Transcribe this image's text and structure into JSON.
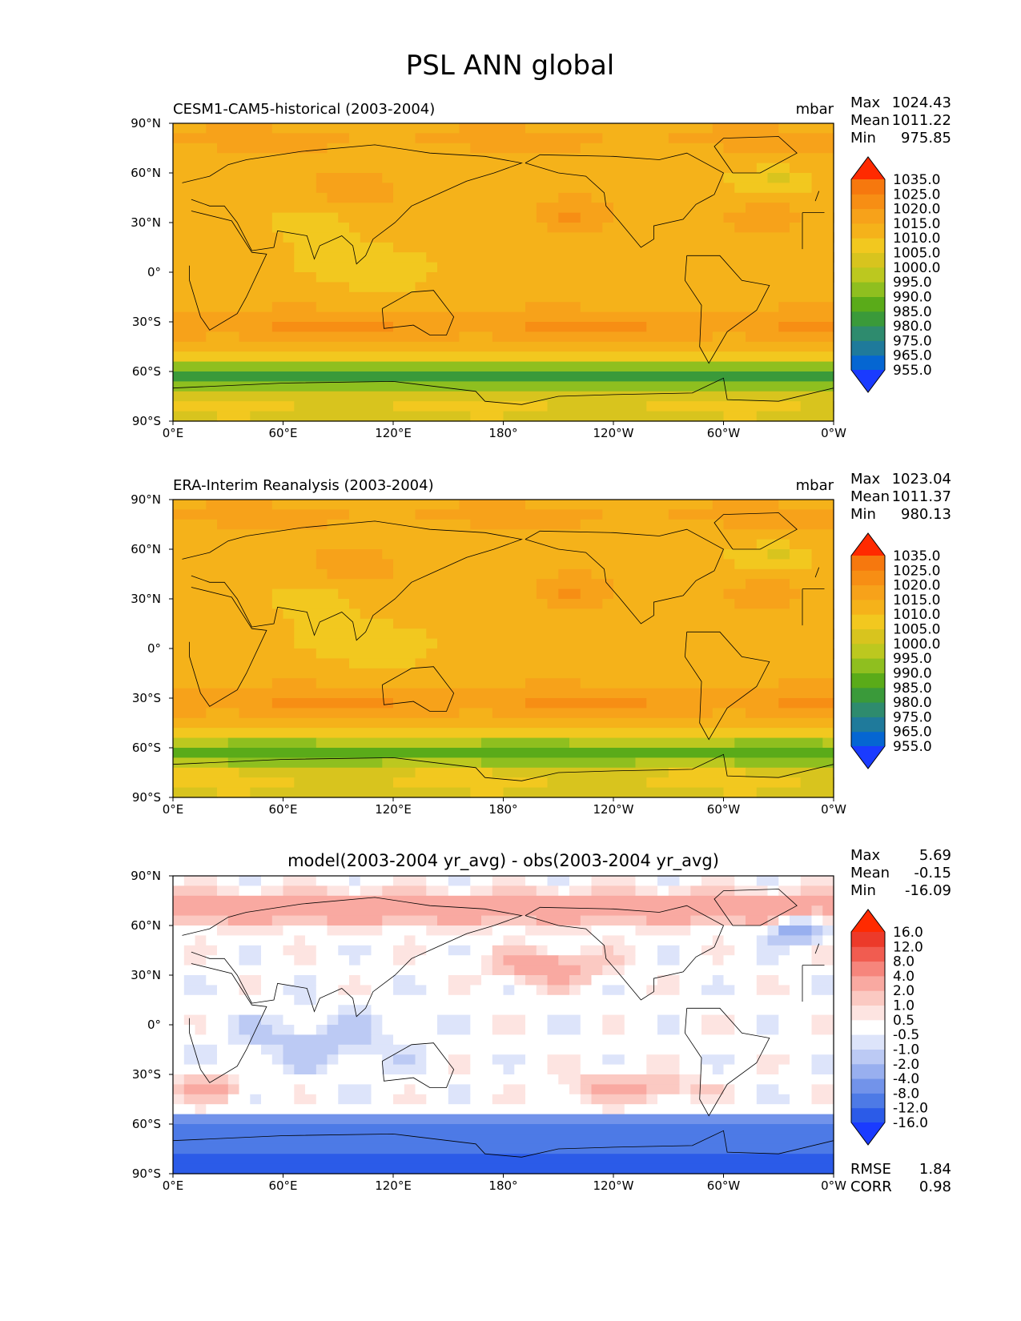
{
  "title": "PSL ANN global",
  "colors": {
    "abs": [
      "#1a3bff",
      "#0566d2",
      "#1f7a9b",
      "#2e8b6e",
      "#3a9a3a",
      "#5aab19",
      "#8fbf1f",
      "#bcc81f",
      "#d8c41e",
      "#f2c81f",
      "#f5b21a",
      "#f7a21a",
      "#f78e14",
      "#f6780e",
      "#f24d0a",
      "#ff2a00"
    ],
    "diff": [
      "#1a3bff",
      "#2b5be8",
      "#4d7ae6",
      "#7293ea",
      "#98afef",
      "#bccaf4",
      "#dde4fa",
      "#ffffff",
      "#fde4e1",
      "#fbc9c2",
      "#f9a9a1",
      "#f6857c",
      "#f15c50",
      "#ec3a2a",
      "#ff2a00"
    ],
    "coastline": "#000000"
  },
  "chart_data": [
    {
      "type": "heatmap",
      "panel": "test",
      "title_left": "CESM1-CAM5-historical (2003-2004)",
      "title_right": "mbar",
      "stats": [
        {
          "label": "Max",
          "value": "1024.43"
        },
        {
          "label": "Mean",
          "value": "1011.22"
        },
        {
          "label": "Min",
          "value": "975.85"
        }
      ],
      "colorbar_levels": [
        "955.0",
        "965.0",
        "975.0",
        "980.0",
        "985.0",
        "990.0",
        "995.0",
        "1000.0",
        "1005.0",
        "1010.0",
        "1015.0",
        "1020.0",
        "1025.0",
        "1035.0"
      ],
      "xticks": [
        "0°E",
        "60°E",
        "120°E",
        "180°",
        "120°W",
        "60°W",
        "0°W"
      ],
      "yticks": [
        "90°N",
        "60°N",
        "30°N",
        "0°",
        "30°S",
        "60°S",
        "90°S"
      ],
      "xlim": [
        0,
        360
      ],
      "ylim": [
        -90,
        90
      ]
    },
    {
      "type": "heatmap",
      "panel": "reference",
      "title_left": "ERA-Interim Reanalysis (2003-2004)",
      "title_right": "mbar",
      "stats": [
        {
          "label": "Max",
          "value": "1023.04"
        },
        {
          "label": "Mean",
          "value": "1011.37"
        },
        {
          "label": "Min",
          "value": "980.13"
        }
      ],
      "colorbar_levels": [
        "955.0",
        "965.0",
        "975.0",
        "980.0",
        "985.0",
        "990.0",
        "995.0",
        "1000.0",
        "1005.0",
        "1010.0",
        "1015.0",
        "1020.0",
        "1025.0",
        "1035.0"
      ],
      "xticks": [
        "0°E",
        "60°E",
        "120°E",
        "180°",
        "120°W",
        "60°W",
        "0°W"
      ],
      "yticks": [
        "90°N",
        "60°N",
        "30°N",
        "0°",
        "30°S",
        "60°S",
        "90°S"
      ],
      "xlim": [
        0,
        360
      ],
      "ylim": [
        -90,
        90
      ]
    },
    {
      "type": "heatmap",
      "panel": "difference",
      "title_center": "model(2003-2004 yr_avg) - obs(2003-2004 yr_avg)",
      "stats": [
        {
          "label": "Max",
          "value": "5.69"
        },
        {
          "label": "Mean",
          "value": "-0.15"
        },
        {
          "label": "Min",
          "value": "-16.09"
        }
      ],
      "extra_stats": [
        {
          "label": "RMSE",
          "value": "1.84"
        },
        {
          "label": "CORR",
          "value": "0.98"
        }
      ],
      "colorbar_levels": [
        "-16.0",
        "-12.0",
        "-8.0",
        "-4.0",
        "-2.0",
        "-1.0",
        "-0.5",
        "0.5",
        "1.0",
        "2.0",
        "4.0",
        "8.0",
        "12.0",
        "16.0"
      ],
      "xticks": [
        "0°E",
        "60°E",
        "120°E",
        "180°",
        "120°W",
        "60°W",
        "0°W"
      ],
      "yticks": [
        "90°N",
        "60°N",
        "30°N",
        "0°",
        "30°S",
        "60°S",
        "90°S"
      ],
      "xlim": [
        0,
        360
      ],
      "ylim": [
        -90,
        90
      ]
    }
  ]
}
